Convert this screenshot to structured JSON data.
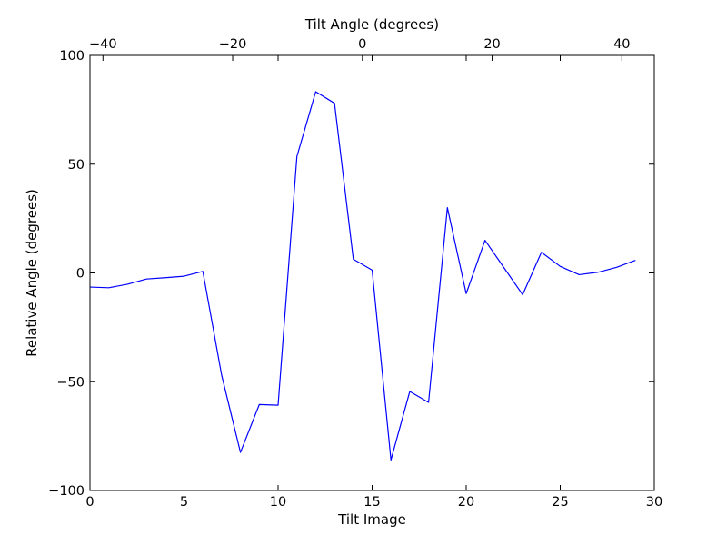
{
  "chart_data": {
    "type": "line",
    "title": "",
    "xlabel": "Tilt Image",
    "ylabel": "Relative Angle (degrees)",
    "x2label": "Tilt Angle (degrees)",
    "xlim": [
      0,
      30
    ],
    "ylim": [
      -100,
      100
    ],
    "x2lim": [
      -42,
      45
    ],
    "xticks": [
      0,
      5,
      10,
      15,
      20,
      25,
      30
    ],
    "yticks": [
      -100,
      -50,
      0,
      50,
      100
    ],
    "x2ticks": [
      -40,
      -20,
      0,
      20,
      40
    ],
    "xtick_labels": [
      "0",
      "5",
      "10",
      "15",
      "20",
      "25",
      "30"
    ],
    "ytick_labels": [
      "−100",
      "−50",
      "0",
      "50",
      "100"
    ],
    "x2tick_labels": [
      "−40",
      "−20",
      "0",
      "20",
      "40"
    ],
    "grid": false,
    "series": [
      {
        "color": "#0000ff",
        "x": [
          0,
          1,
          2,
          3,
          4,
          5,
          6,
          7,
          8,
          9,
          10,
          11,
          12,
          13,
          14,
          15,
          16,
          17,
          18,
          19,
          20,
          21,
          22,
          23,
          24,
          25,
          26,
          27,
          28,
          29
        ],
        "values": [
          -6.5,
          -6.8,
          -5.2,
          -2.8,
          -2.2,
          -1.5,
          0.7,
          -47,
          -82.5,
          -60.5,
          -60.8,
          53.5,
          83.3,
          78,
          6.3,
          1.3,
          -86,
          -54.5,
          -59.5,
          30,
          -9.5,
          15,
          2.5,
          -10,
          9.5,
          3,
          -0.8,
          0.3,
          2.6,
          5.8
        ]
      }
    ]
  }
}
